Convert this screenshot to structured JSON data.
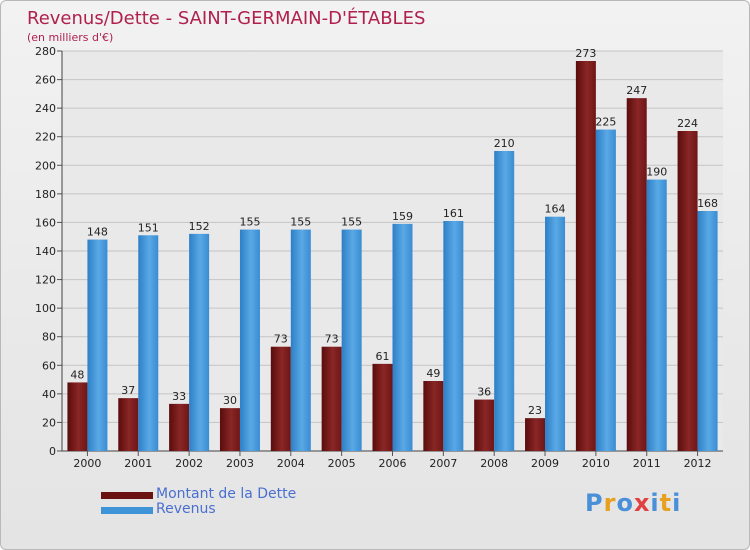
{
  "chart_data": {
    "type": "bar",
    "title": "Revenus/Dette - SAINT-GERMAIN-D'ÉTABLES",
    "subtitle": "(en milliers d'€)",
    "categories": [
      "2000",
      "2001",
      "2002",
      "2003",
      "2004",
      "2005",
      "2006",
      "2007",
      "2008",
      "2009",
      "2010",
      "2011",
      "2012"
    ],
    "series": [
      {
        "name": "Montant de la Dette",
        "color": "#7a1a1a",
        "values": [
          48,
          37,
          33,
          30,
          73,
          73,
          61,
          49,
          36,
          23,
          273,
          247,
          224
        ]
      },
      {
        "name": "Revenus",
        "color": "#3f94d8",
        "values": [
          148,
          151,
          152,
          155,
          155,
          155,
          159,
          161,
          210,
          164,
          225,
          190,
          168
        ]
      }
    ],
    "ylim": [
      0,
      280
    ],
    "yticks": [
      "0",
      "20",
      "40",
      "60",
      "80",
      "100",
      "120",
      "140",
      "160",
      "180",
      "200",
      "220",
      "240",
      "260",
      "280"
    ],
    "grid": true,
    "legend_position": "bottom-left"
  },
  "logo": {
    "text": "Proxiti",
    "letter_colors": [
      "#4a90d9",
      "#e8a020",
      "#4a90d9",
      "#e04040",
      "#4a90d9",
      "#e8a020",
      "#4a90d9"
    ]
  }
}
